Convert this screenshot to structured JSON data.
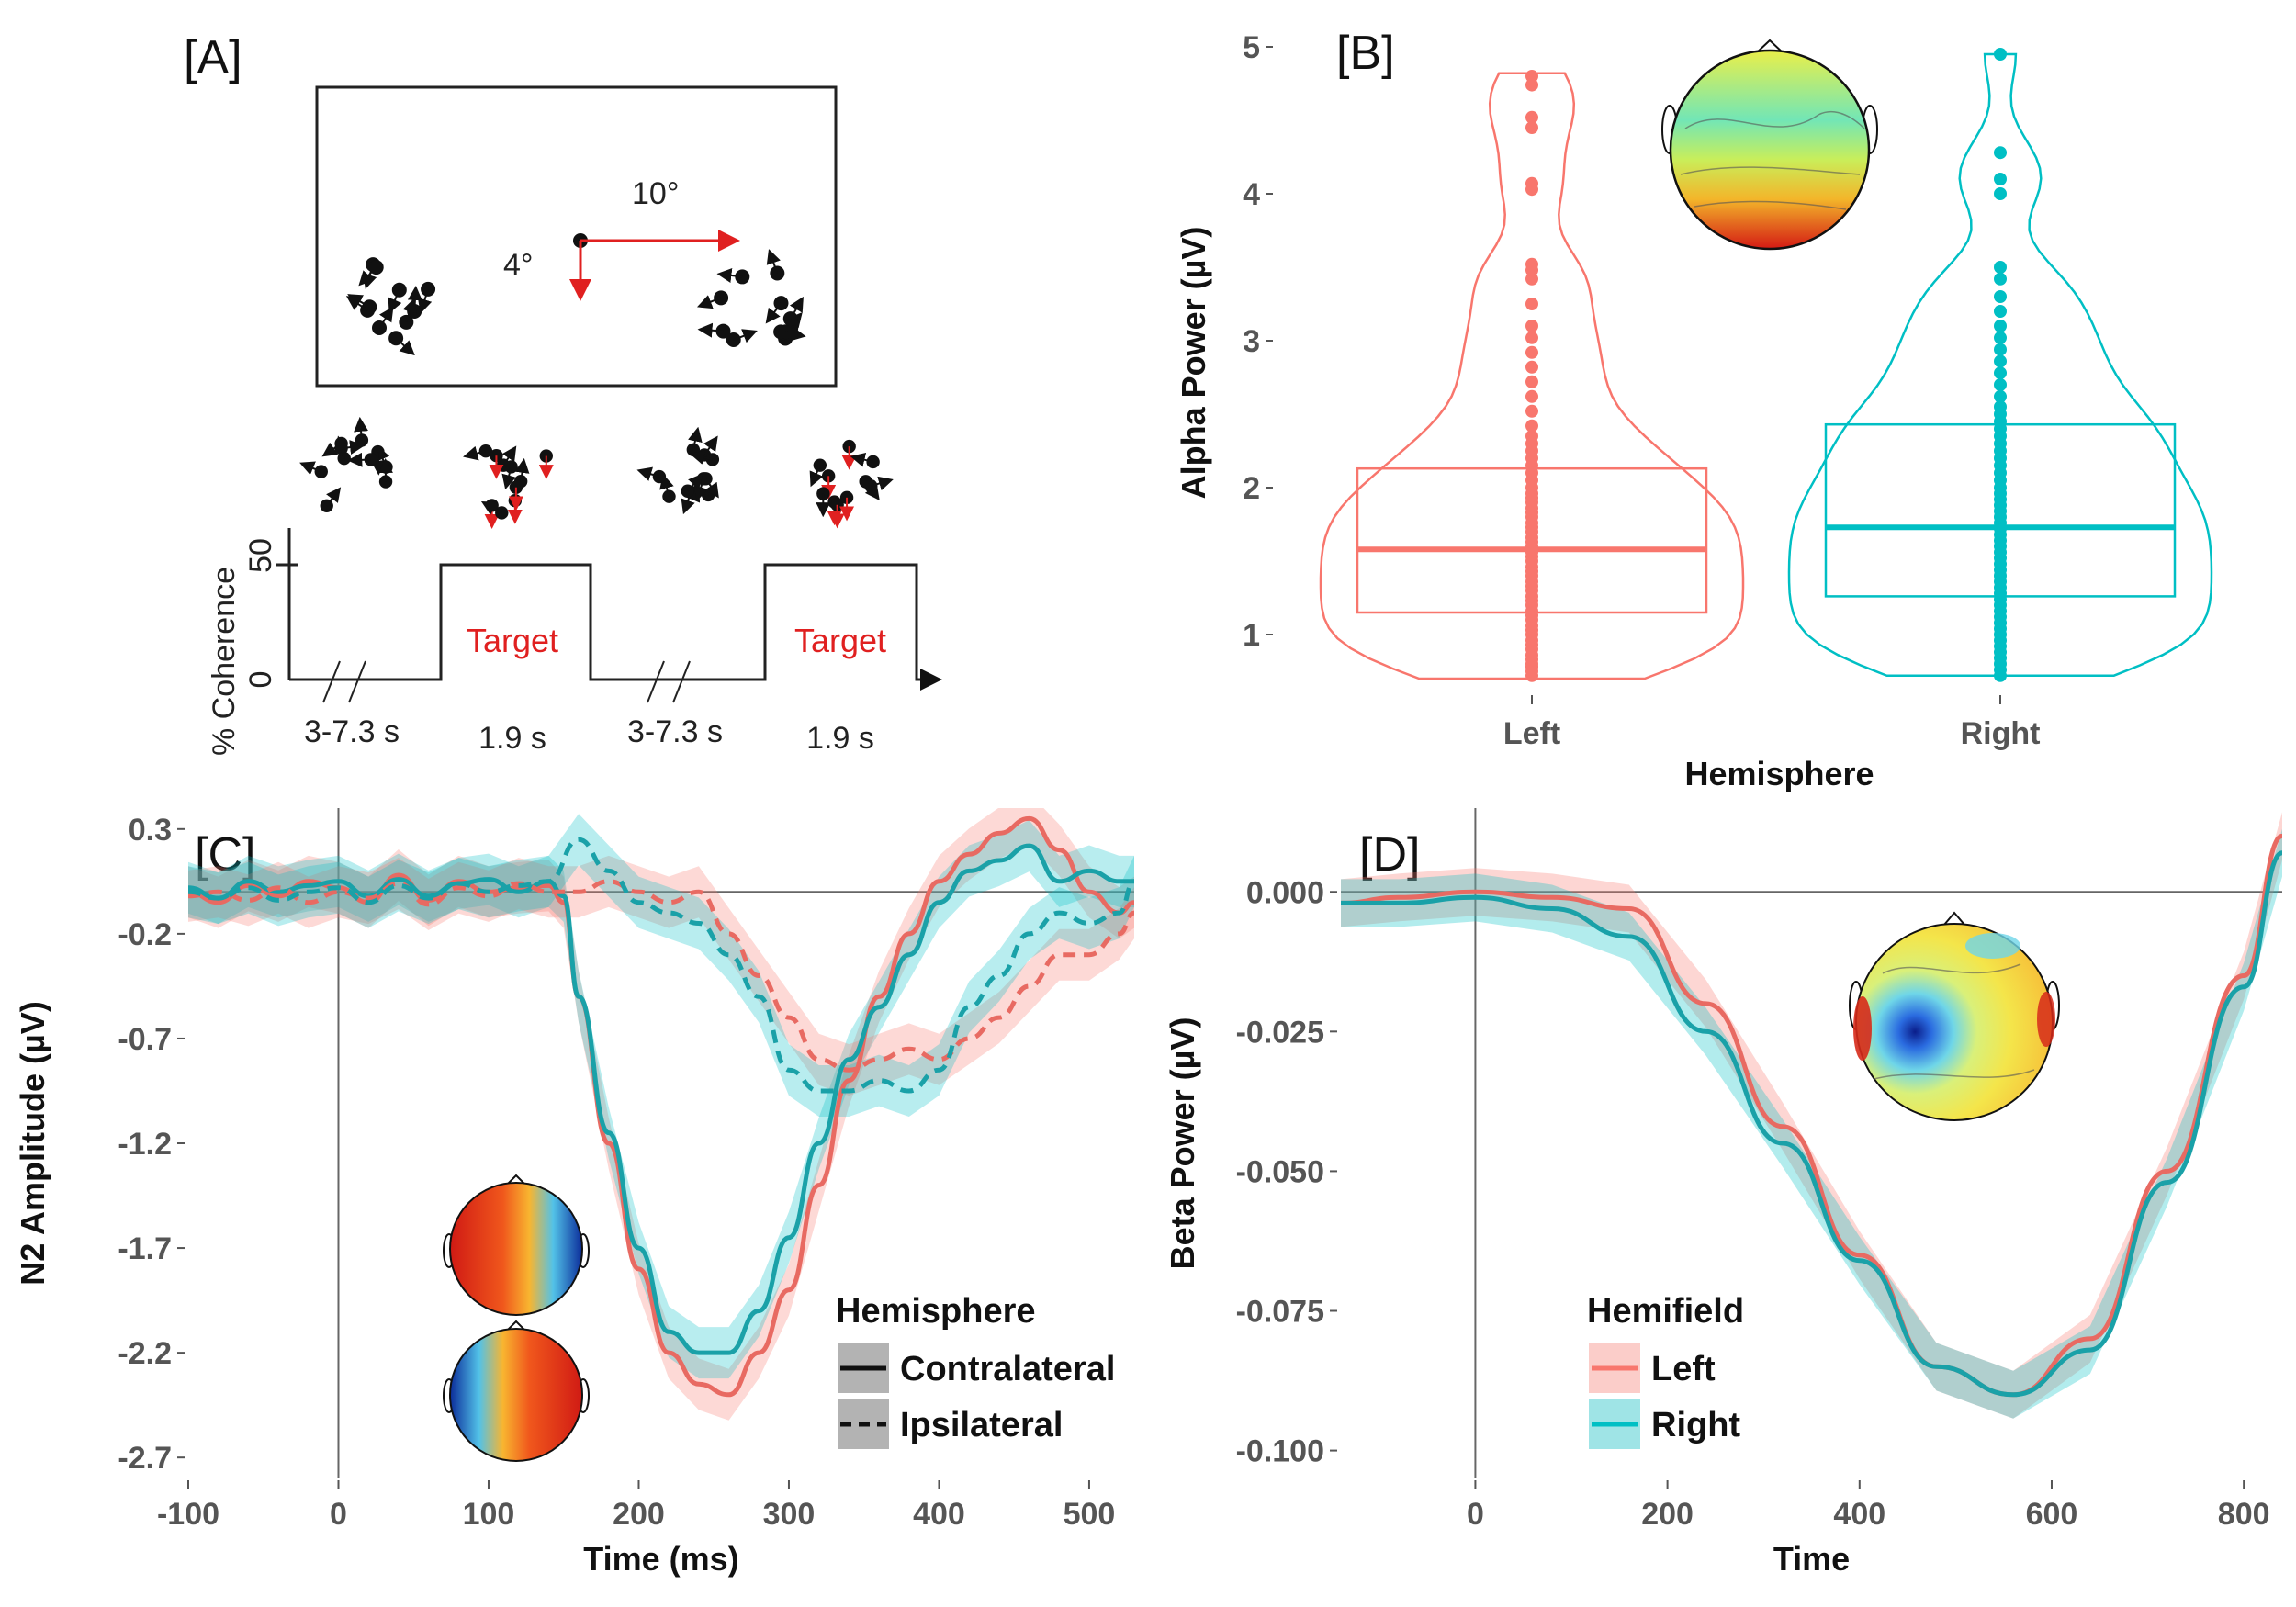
{
  "colors": {
    "left": "#F8766D",
    "right": "#00BFC4",
    "contra_ipsi_contra": "#1aa1a8",
    "contra_ipsi_ipsi": "#1aa1a8"
  },
  "panelA": {
    "label": "[A]",
    "dist_label": "10°",
    "radius_label": "4°",
    "ylabel": "% Coherence",
    "ytick_50": "50",
    "ytick_0": "0",
    "durations": [
      "3-7.3 s",
      "1.9 s",
      "3-7.3 s",
      "1.9 s"
    ],
    "target_labels": [
      "Target",
      "Target"
    ]
  },
  "chart_data": [
    {
      "panel": "[B]",
      "type": "violin+box+points",
      "xlabel": "Hemisphere",
      "ylabel": "Alpha Power (µV)",
      "categories": [
        "Left",
        "Right"
      ],
      "ylim": [
        0.6,
        5.1
      ],
      "yticks": [
        1,
        2,
        3,
        4,
        5
      ],
      "series": [
        {
          "name": "Left",
          "box": {
            "q1": 1.15,
            "median": 1.58,
            "q3": 2.13
          },
          "min": 0.7,
          "max": 4.82,
          "points": [
            0.72,
            0.75,
            0.78,
            0.8,
            0.83,
            0.86,
            0.9,
            0.93,
            0.96,
            1.0,
            1.03,
            1.06,
            1.1,
            1.13,
            1.16,
            1.2,
            1.23,
            1.26,
            1.3,
            1.33,
            1.36,
            1.4,
            1.43,
            1.46,
            1.5,
            1.53,
            1.56,
            1.6,
            1.63,
            1.66,
            1.7,
            1.73,
            1.76,
            1.8,
            1.83,
            1.86,
            1.9,
            1.93,
            1.96,
            2.0,
            2.05,
            2.1,
            2.15,
            2.2,
            2.25,
            2.3,
            2.35,
            2.42,
            2.52,
            2.62,
            2.72,
            2.82,
            2.92,
            3.02,
            3.1,
            3.25,
            3.42,
            3.48,
            3.52,
            4.03,
            4.07,
            4.45,
            4.52,
            4.74,
            4.8
          ]
        },
        {
          "name": "Right",
          "box": {
            "q1": 1.26,
            "median": 1.73,
            "q3": 2.43
          },
          "min": 0.72,
          "max": 4.95,
          "points": [
            0.72,
            0.76,
            0.8,
            0.84,
            0.88,
            0.92,
            0.96,
            1.0,
            1.04,
            1.08,
            1.12,
            1.16,
            1.2,
            1.24,
            1.28,
            1.32,
            1.36,
            1.4,
            1.44,
            1.48,
            1.52,
            1.56,
            1.6,
            1.64,
            1.68,
            1.72,
            1.76,
            1.8,
            1.84,
            1.88,
            1.92,
            1.96,
            2.0,
            2.05,
            2.1,
            2.15,
            2.2,
            2.25,
            2.3,
            2.35,
            2.4,
            2.45,
            2.5,
            2.55,
            2.62,
            2.7,
            2.78,
            2.86,
            2.94,
            3.02,
            3.1,
            3.2,
            3.3,
            3.42,
            3.5,
            4.0,
            4.1,
            4.28,
            4.95
          ]
        }
      ]
    },
    {
      "panel": "[C]",
      "type": "line",
      "xlabel": "Time (ms)",
      "ylabel": "N2 Amplitude (µV)",
      "xlim": [
        -100,
        530
      ],
      "ylim": [
        -2.8,
        0.4
      ],
      "xticks": [
        -100,
        0,
        100,
        200,
        300,
        400,
        500
      ],
      "yticks": [
        0.3,
        -0.2,
        -0.7,
        -1.2,
        -1.7,
        -2.2,
        -2.7
      ],
      "legend_title": "Hemisphere",
      "legend": [
        "Contralateral",
        "Ipsilateral"
      ],
      "series": [
        {
          "hemifield": "Left",
          "type": "Contralateral",
          "x": [
            -100,
            -80,
            -60,
            -40,
            -20,
            0,
            20,
            40,
            60,
            80,
            100,
            120,
            140,
            150,
            160,
            180,
            200,
            220,
            240,
            260,
            280,
            300,
            320,
            340,
            360,
            380,
            400,
            420,
            440,
            460,
            480,
            500,
            520,
            530
          ],
          "y": [
            0.0,
            -0.05,
            0.03,
            -0.02,
            0.05,
            0.02,
            -0.05,
            0.08,
            -0.04,
            0.05,
            0.0,
            0.02,
            0.03,
            -0.05,
            -0.5,
            -1.2,
            -1.8,
            -2.2,
            -2.35,
            -2.4,
            -2.2,
            -1.9,
            -1.4,
            -0.9,
            -0.5,
            -0.2,
            0.05,
            0.18,
            0.28,
            0.35,
            0.2,
            0.0,
            -0.1,
            -0.05
          ]
        },
        {
          "hemifield": "Right",
          "type": "Contralateral",
          "x": [
            -100,
            -80,
            -60,
            -40,
            -20,
            0,
            20,
            40,
            60,
            80,
            100,
            120,
            140,
            150,
            160,
            180,
            200,
            220,
            240,
            260,
            280,
            300,
            320,
            340,
            360,
            380,
            400,
            420,
            440,
            460,
            480,
            500,
            520,
            530
          ],
          "y": [
            0.02,
            -0.03,
            0.05,
            0.0,
            0.03,
            0.05,
            -0.02,
            0.06,
            -0.02,
            0.04,
            0.06,
            0.0,
            0.05,
            -0.02,
            -0.5,
            -1.15,
            -1.7,
            -2.1,
            -2.2,
            -2.2,
            -2.0,
            -1.65,
            -1.2,
            -0.8,
            -0.55,
            -0.3,
            -0.05,
            0.1,
            0.15,
            0.22,
            0.05,
            0.1,
            0.05,
            0.05
          ]
        },
        {
          "hemifield": "Left",
          "type": "Ipsilateral",
          "x": [
            -100,
            -80,
            -60,
            -40,
            -20,
            0,
            20,
            40,
            60,
            80,
            100,
            120,
            140,
            160,
            180,
            200,
            220,
            240,
            260,
            280,
            300,
            320,
            340,
            360,
            380,
            400,
            420,
            440,
            460,
            480,
            500,
            520,
            530
          ],
          "y": [
            -0.02,
            0.0,
            -0.04,
            0.02,
            -0.05,
            0.0,
            -0.03,
            0.04,
            -0.06,
            0.02,
            -0.02,
            0.04,
            0.0,
            0.0,
            0.05,
            0.0,
            -0.05,
            0.0,
            -0.2,
            -0.4,
            -0.6,
            -0.8,
            -0.85,
            -0.8,
            -0.75,
            -0.8,
            -0.7,
            -0.6,
            -0.45,
            -0.3,
            -0.3,
            -0.2,
            -0.1
          ]
        },
        {
          "hemifield": "Right",
          "type": "Ipsilateral",
          "x": [
            -100,
            -80,
            -60,
            -40,
            -20,
            0,
            20,
            40,
            60,
            80,
            100,
            120,
            140,
            160,
            180,
            200,
            220,
            240,
            260,
            280,
            300,
            320,
            340,
            360,
            380,
            400,
            420,
            440,
            460,
            480,
            500,
            520,
            530
          ],
          "y": [
            0.0,
            -0.03,
            0.02,
            -0.04,
            0.0,
            0.02,
            -0.05,
            0.03,
            -0.03,
            0.04,
            0.0,
            0.03,
            0.05,
            0.25,
            0.1,
            -0.05,
            -0.1,
            -0.15,
            -0.3,
            -0.5,
            -0.85,
            -0.95,
            -0.95,
            -0.9,
            -0.95,
            -0.85,
            -0.55,
            -0.4,
            -0.2,
            -0.1,
            -0.15,
            -0.1,
            0.05
          ]
        }
      ]
    },
    {
      "panel": "[D]",
      "type": "line",
      "xlabel": "Time",
      "ylabel": "Beta Power (µV)",
      "xlim": [
        -140,
        840
      ],
      "ylim": [
        -0.105,
        0.015
      ],
      "xticks": [
        0,
        200,
        400,
        600,
        800
      ],
      "yticks": [
        "0.000",
        "-0.025",
        "-0.050",
        "-0.075",
        "-0.100"
      ],
      "legend_title": "Hemifield",
      "legend": [
        "Left",
        "Right"
      ],
      "series": [
        {
          "name": "Left",
          "x": [
            -140,
            -80,
            0,
            80,
            160,
            240,
            320,
            400,
            480,
            560,
            640,
            720,
            800,
            840
          ],
          "y": [
            -0.002,
            -0.001,
            0.0,
            -0.001,
            -0.003,
            -0.02,
            -0.042,
            -0.065,
            -0.085,
            -0.09,
            -0.08,
            -0.05,
            -0.015,
            0.01
          ]
        },
        {
          "name": "Right",
          "x": [
            -140,
            -80,
            0,
            80,
            160,
            240,
            320,
            400,
            480,
            560,
            640,
            720,
            800,
            840
          ],
          "y": [
            -0.002,
            -0.002,
            -0.001,
            -0.003,
            -0.008,
            -0.025,
            -0.045,
            -0.066,
            -0.085,
            -0.09,
            -0.082,
            -0.052,
            -0.017,
            0.007
          ]
        }
      ]
    }
  ]
}
